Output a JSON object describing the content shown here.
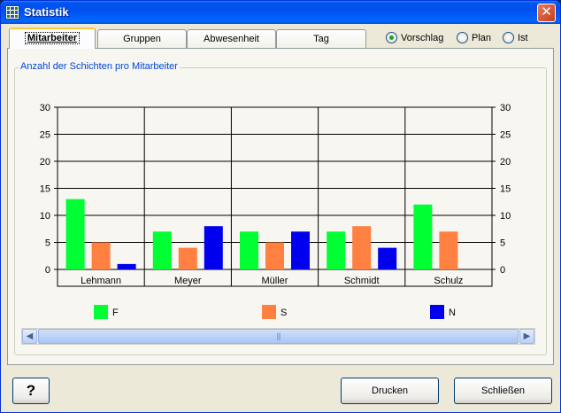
{
  "window": {
    "title": "Statistik",
    "close_symbol": "✕"
  },
  "tabs": [
    {
      "label": "Mitarbeiter",
      "active": true
    },
    {
      "label": "Gruppen",
      "active": false
    },
    {
      "label": "Abwesenheit",
      "active": false
    },
    {
      "label": "Tag",
      "active": false
    }
  ],
  "view_mode": {
    "options": [
      {
        "label": "Vorschlag",
        "selected": true
      },
      {
        "label": "Plan",
        "selected": false
      },
      {
        "label": "Ist",
        "selected": false
      }
    ]
  },
  "group": {
    "label": "Anzahl der Schichten pro Mitarbeiter"
  },
  "colors": {
    "F": "#00ff33",
    "S": "#ff8040",
    "N": "#0000ee"
  },
  "chart_data": {
    "type": "bar",
    "title": "",
    "xlabel": "",
    "ylabel": "",
    "ylim": [
      0,
      30
    ],
    "yticks": [
      0,
      5,
      10,
      15,
      20,
      25,
      30
    ],
    "grid": true,
    "legend_position": "bottom",
    "categories": [
      "Lehmann",
      "Meyer",
      "Müller",
      "Schmidt",
      "Schulz"
    ],
    "series": [
      {
        "name": "F",
        "color": "#00ff33",
        "values": [
          13,
          7,
          7,
          7,
          12
        ]
      },
      {
        "name": "S",
        "color": "#ff8040",
        "values": [
          5,
          4,
          5,
          8,
          7
        ]
      },
      {
        "name": "N",
        "color": "#0000ee",
        "values": [
          1,
          8,
          7,
          4,
          0
        ]
      }
    ]
  },
  "scrollbar": {
    "left_arrow": "◀",
    "right_arrow": "▶",
    "grip": "|||"
  },
  "buttons": {
    "help": "?",
    "print": "Drucken",
    "close": "Schließen"
  }
}
